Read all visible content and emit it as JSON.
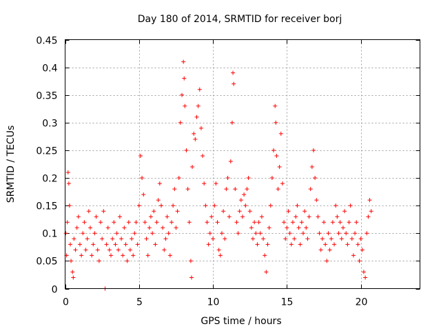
{
  "chart_data": {
    "type": "scatter",
    "title": "Day 180 of 2014, SRMTID for receiver borj",
    "xlabel": "GPS time / hours",
    "ylabel": "SRMTID / TECUs",
    "xlim": [
      0,
      24
    ],
    "ylim": [
      0,
      0.45
    ],
    "xticks": [
      0,
      5,
      10,
      15,
      20
    ],
    "xtick_labels": [
      "0",
      "5",
      "10",
      "15",
      "20"
    ],
    "yticks": [
      0,
      0.05,
      0.1,
      0.15,
      0.2,
      0.25,
      0.3,
      0.35,
      0.4,
      0.45
    ],
    "ytick_labels": [
      "0",
      "0.05",
      "0.1",
      "0.15",
      "0.2",
      "0.25",
      "0.3",
      "0.35",
      "0.4",
      "0.45"
    ],
    "grid": true,
    "marker": "plus",
    "color": "#ff0000",
    "series": [
      {
        "name": "SRMTID",
        "points": [
          [
            0.05,
            0.1
          ],
          [
            0.1,
            0.06
          ],
          [
            0.15,
            0.12
          ],
          [
            0.2,
            0.21
          ],
          [
            0.25,
            0.19
          ],
          [
            0.3,
            0.15
          ],
          [
            0.35,
            0.08
          ],
          [
            0.4,
            0.05
          ],
          [
            0.5,
            0.03
          ],
          [
            0.55,
            0.02
          ],
          [
            0.6,
            0.09
          ],
          [
            0.7,
            0.07
          ],
          [
            0.8,
            0.11
          ],
          [
            0.9,
            0.13
          ],
          [
            1.0,
            0.08
          ],
          [
            1.1,
            0.06
          ],
          [
            1.2,
            0.1
          ],
          [
            1.3,
            0.12
          ],
          [
            1.4,
            0.07
          ],
          [
            1.5,
            0.09
          ],
          [
            1.6,
            0.14
          ],
          [
            1.7,
            0.11
          ],
          [
            1.8,
            0.06
          ],
          [
            1.9,
            0.08
          ],
          [
            2.0,
            0.1
          ],
          [
            2.1,
            0.13
          ],
          [
            2.2,
            0.07
          ],
          [
            2.3,
            0.05
          ],
          [
            2.4,
            0.12
          ],
          [
            2.5,
            0.09
          ],
          [
            2.6,
            0.14
          ],
          [
            2.7,
            0.0
          ],
          [
            2.8,
            0.08
          ],
          [
            2.9,
            0.11
          ],
          [
            3.0,
            0.07
          ],
          [
            3.1,
            0.06
          ],
          [
            3.2,
            0.09
          ],
          [
            3.3,
            0.12
          ],
          [
            3.4,
            0.08
          ],
          [
            3.5,
            0.1
          ],
          [
            3.6,
            0.07
          ],
          [
            3.7,
            0.13
          ],
          [
            3.8,
            0.09
          ],
          [
            3.9,
            0.06
          ],
          [
            4.0,
            0.11
          ],
          [
            4.1,
            0.08
          ],
          [
            4.2,
            0.05
          ],
          [
            4.3,
            0.12
          ],
          [
            4.4,
            0.07
          ],
          [
            4.5,
            0.09
          ],
          [
            4.6,
            0.06
          ],
          [
            4.7,
            0.1
          ],
          [
            4.8,
            0.12
          ],
          [
            4.9,
            0.08
          ],
          [
            5.0,
            0.15
          ],
          [
            5.1,
            0.24
          ],
          [
            5.2,
            0.2
          ],
          [
            5.3,
            0.17
          ],
          [
            5.4,
            0.12
          ],
          [
            5.5,
            0.09
          ],
          [
            5.6,
            0.06
          ],
          [
            5.7,
            0.11
          ],
          [
            5.8,
            0.13
          ],
          [
            5.9,
            0.1
          ],
          [
            6.0,
            0.14
          ],
          [
            6.1,
            0.08
          ],
          [
            6.2,
            0.12
          ],
          [
            6.3,
            0.16
          ],
          [
            6.4,
            0.19
          ],
          [
            6.5,
            0.15
          ],
          [
            6.6,
            0.11
          ],
          [
            6.7,
            0.07
          ],
          [
            6.8,
            0.09
          ],
          [
            6.9,
            0.13
          ],
          [
            7.0,
            0.1
          ],
          [
            7.1,
            0.06
          ],
          [
            7.2,
            0.12
          ],
          [
            7.3,
            0.15
          ],
          [
            7.4,
            0.18
          ],
          [
            7.5,
            0.11
          ],
          [
            7.6,
            0.14
          ],
          [
            7.7,
            0.2
          ],
          [
            7.8,
            0.3
          ],
          [
            7.9,
            0.35
          ],
          [
            8.0,
            0.41
          ],
          [
            8.05,
            0.38
          ],
          [
            8.1,
            0.33
          ],
          [
            8.2,
            0.25
          ],
          [
            8.3,
            0.18
          ],
          [
            8.4,
            0.12
          ],
          [
            8.5,
            0.05
          ],
          [
            8.55,
            0.02
          ],
          [
            8.6,
            0.22
          ],
          [
            8.7,
            0.28
          ],
          [
            8.8,
            0.27
          ],
          [
            8.9,
            0.31
          ],
          [
            9.0,
            0.33
          ],
          [
            9.1,
            0.36
          ],
          [
            9.2,
            0.29
          ],
          [
            9.3,
            0.24
          ],
          [
            9.4,
            0.19
          ],
          [
            9.5,
            0.15
          ],
          [
            9.6,
            0.12
          ],
          [
            9.7,
            0.08
          ],
          [
            9.8,
            0.1
          ],
          [
            9.9,
            0.13
          ],
          [
            10.0,
            0.09
          ],
          [
            10.1,
            0.15
          ],
          [
            10.2,
            0.19
          ],
          [
            10.3,
            0.12
          ],
          [
            10.4,
            0.07
          ],
          [
            10.5,
            0.06
          ],
          [
            10.6,
            0.1
          ],
          [
            10.7,
            0.14
          ],
          [
            10.8,
            0.09
          ],
          [
            10.9,
            0.18
          ],
          [
            11.0,
            0.2
          ],
          [
            11.1,
            0.13
          ],
          [
            11.2,
            0.23
          ],
          [
            11.3,
            0.3
          ],
          [
            11.35,
            0.39
          ],
          [
            11.4,
            0.37
          ],
          [
            11.5,
            0.18
          ],
          [
            11.6,
            0.12
          ],
          [
            11.7,
            0.1
          ],
          [
            11.8,
            0.14
          ],
          [
            11.9,
            0.16
          ],
          [
            12.0,
            0.13
          ],
          [
            12.1,
            0.17
          ],
          [
            12.2,
            0.15
          ],
          [
            12.3,
            0.18
          ],
          [
            12.4,
            0.2
          ],
          [
            12.5,
            0.14
          ],
          [
            12.6,
            0.11
          ],
          [
            12.7,
            0.09
          ],
          [
            12.8,
            0.12
          ],
          [
            12.9,
            0.1
          ],
          [
            13.0,
            0.08
          ],
          [
            13.1,
            0.12
          ],
          [
            13.2,
            0.1
          ],
          [
            13.3,
            0.13
          ],
          [
            13.4,
            0.09
          ],
          [
            13.5,
            0.06
          ],
          [
            13.6,
            0.03
          ],
          [
            13.7,
            0.08
          ],
          [
            13.8,
            0.11
          ],
          [
            13.9,
            0.15
          ],
          [
            14.0,
            0.2
          ],
          [
            14.1,
            0.25
          ],
          [
            14.2,
            0.33
          ],
          [
            14.25,
            0.3
          ],
          [
            14.3,
            0.24
          ],
          [
            14.4,
            0.18
          ],
          [
            14.5,
            0.22
          ],
          [
            14.6,
            0.28
          ],
          [
            14.7,
            0.19
          ],
          [
            14.8,
            0.12
          ],
          [
            14.9,
            0.09
          ],
          [
            15.0,
            0.11
          ],
          [
            15.1,
            0.14
          ],
          [
            15.2,
            0.1
          ],
          [
            15.3,
            0.08
          ],
          [
            15.4,
            0.12
          ],
          [
            15.5,
            0.09
          ],
          [
            15.6,
            0.13
          ],
          [
            15.7,
            0.15
          ],
          [
            15.8,
            0.11
          ],
          [
            15.9,
            0.08
          ],
          [
            16.0,
            0.12
          ],
          [
            16.1,
            0.1
          ],
          [
            16.2,
            0.14
          ],
          [
            16.3,
            0.11
          ],
          [
            16.4,
            0.09
          ],
          [
            16.5,
            0.13
          ],
          [
            16.6,
            0.18
          ],
          [
            16.7,
            0.22
          ],
          [
            16.8,
            0.25
          ],
          [
            16.9,
            0.2
          ],
          [
            17.0,
            0.16
          ],
          [
            17.1,
            0.13
          ],
          [
            17.2,
            0.1
          ],
          [
            17.3,
            0.07
          ],
          [
            17.4,
            0.09
          ],
          [
            17.5,
            0.12
          ],
          [
            17.6,
            0.08
          ],
          [
            17.7,
            0.05
          ],
          [
            17.8,
            0.1
          ],
          [
            17.9,
            0.07
          ],
          [
            18.0,
            0.09
          ],
          [
            18.1,
            0.12
          ],
          [
            18.2,
            0.08
          ],
          [
            18.3,
            0.15
          ],
          [
            18.4,
            0.13
          ],
          [
            18.5,
            0.1
          ],
          [
            18.6,
            0.12
          ],
          [
            18.7,
            0.09
          ],
          [
            18.8,
            0.11
          ],
          [
            18.9,
            0.14
          ],
          [
            19.0,
            0.1
          ],
          [
            19.1,
            0.08
          ],
          [
            19.2,
            0.12
          ],
          [
            19.3,
            0.15
          ],
          [
            19.4,
            0.09
          ],
          [
            19.5,
            0.06
          ],
          [
            19.6,
            0.1
          ],
          [
            19.7,
            0.12
          ],
          [
            19.8,
            0.08
          ],
          [
            19.9,
            0.05
          ],
          [
            20.0,
            0.09
          ],
          [
            20.1,
            0.07
          ],
          [
            20.2,
            0.03
          ],
          [
            20.3,
            0.02
          ],
          [
            20.4,
            0.1
          ],
          [
            20.5,
            0.13
          ],
          [
            20.6,
            0.16
          ],
          [
            20.7,
            0.14
          ]
        ]
      }
    ]
  }
}
